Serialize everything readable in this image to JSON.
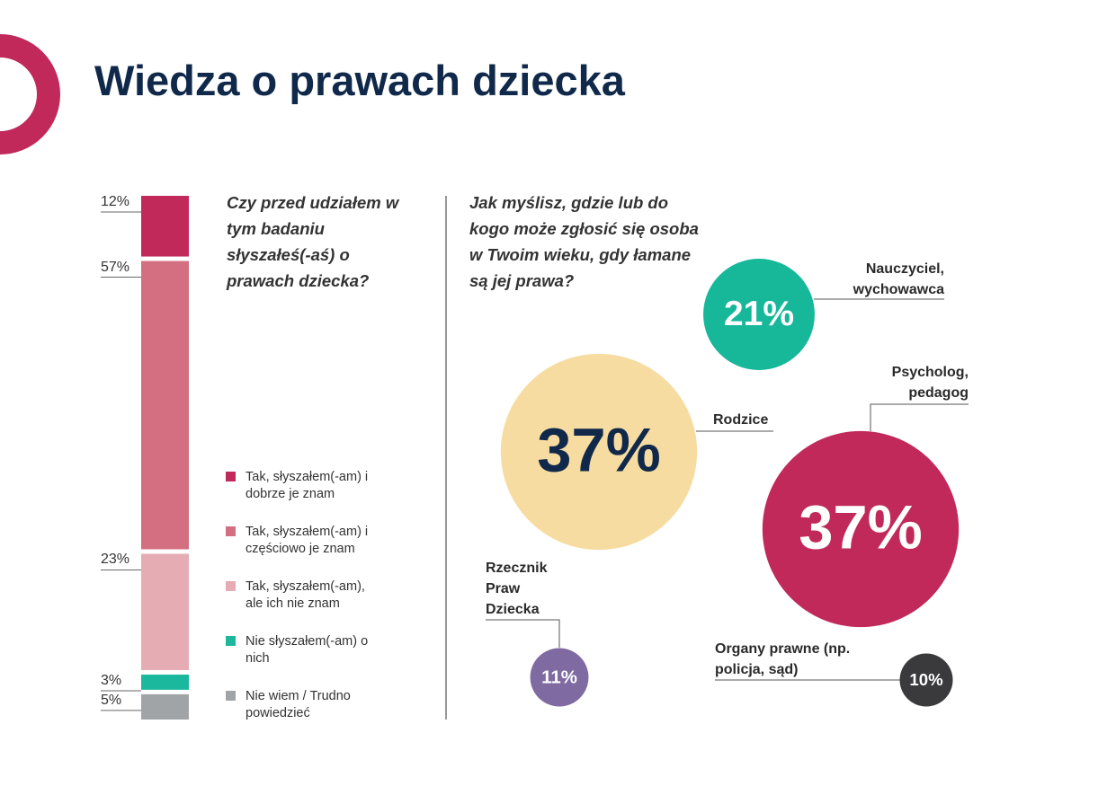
{
  "title": "Wiedza o prawach dziecka",
  "chart_data": [
    {
      "type": "stacked_bar",
      "subtitle": "Czy przed udziałem w tym badaniu słyszałeś(-aś) o prawach dziecka?",
      "series": [
        {
          "name": "Tak, słyszałem(-am) i dobrze je znam",
          "color": "#c0295a",
          "values": [
            12
          ],
          "value_labels": [
            "12%"
          ]
        },
        {
          "name": "Tak, słyszałem(-am) i częściowo je znam",
          "color": "#d36f80",
          "values": [
            57
          ],
          "value_labels": [
            "57%"
          ]
        },
        {
          "name": "Tak, słyszałem(-am), ale ich nie znam",
          "color": "#e6acb3",
          "values": [
            23
          ],
          "value_labels": [
            "23%"
          ]
        },
        {
          "name": "Nie słyszałem(-am) o nich",
          "color": "#1bb89d",
          "values": [
            3
          ],
          "value_labels": [
            "3%"
          ]
        },
        {
          "name": "Nie wiem / Trudno powiedzieć",
          "color": "#a1a4a7",
          "values": [
            5
          ],
          "value_labels": [
            "5%"
          ]
        }
      ]
    },
    {
      "type": "bubble",
      "subtitle": "Jak myślisz, gdzie lub do kogo może zgłosić się osoba w Twoim wieku, gdy łamane są jej prawa?",
      "categories": [
        "Nauczyciel, wychowawca",
        "Rodzice",
        "Psycholog, pedagog",
        "Rzecznik Praw Dziecka",
        "Organy prawne (np. policja, sąd)"
      ],
      "values": [
        21,
        37,
        37,
        11,
        10
      ],
      "value_labels": [
        "21%",
        "37%",
        "37%",
        "11%",
        "10%"
      ],
      "colors": [
        "#17b79a",
        "#f7dca2",
        "#c0295a",
        "#7f6aa1",
        "#3a3a3c"
      ]
    }
  ]
}
